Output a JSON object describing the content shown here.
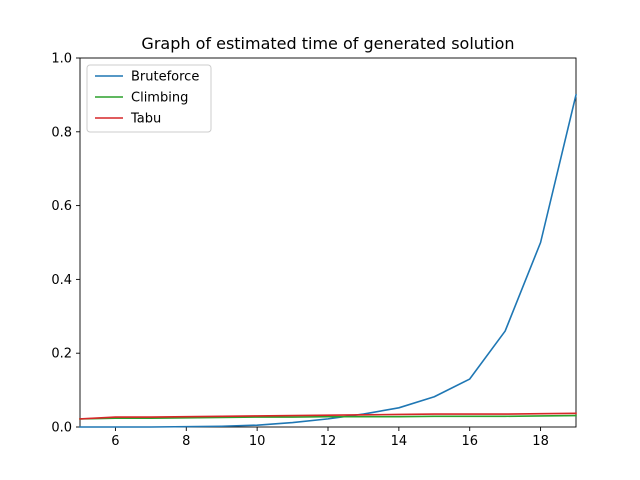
{
  "chart_data": {
    "type": "line",
    "title": "Graph of estimated time of generated solution",
    "xlabel": "",
    "ylabel": "",
    "xlim": [
      5,
      19
    ],
    "ylim": [
      0,
      1.0
    ],
    "x_ticks": [
      6,
      8,
      10,
      12,
      14,
      16,
      18
    ],
    "y_ticks": [
      "0.0",
      "0.2",
      "0.4",
      "0.6",
      "0.8",
      "1.0"
    ],
    "grid": false,
    "legend_position": "top-left",
    "x": [
      5,
      6,
      7,
      8,
      9,
      10,
      11,
      12,
      13,
      14,
      15,
      16,
      17,
      18,
      19
    ],
    "series": [
      {
        "name": "Bruteforce",
        "color": "#1f77b4",
        "values": [
          0.0,
          0.0,
          0.0,
          0.001,
          0.002,
          0.005,
          0.012,
          0.022,
          0.035,
          0.052,
          0.082,
          0.13,
          0.26,
          0.5,
          0.9
        ]
      },
      {
        "name": "Climbing",
        "color": "#2ca02c",
        "values": [
          0.022,
          0.024,
          0.024,
          0.025,
          0.026,
          0.027,
          0.027,
          0.028,
          0.028,
          0.028,
          0.029,
          0.029,
          0.029,
          0.03,
          0.031
        ]
      },
      {
        "name": "Tabu",
        "color": "#d62728",
        "values": [
          0.022,
          0.027,
          0.027,
          0.028,
          0.029,
          0.03,
          0.031,
          0.032,
          0.033,
          0.034,
          0.035,
          0.035,
          0.035,
          0.036,
          0.037
        ]
      }
    ]
  }
}
